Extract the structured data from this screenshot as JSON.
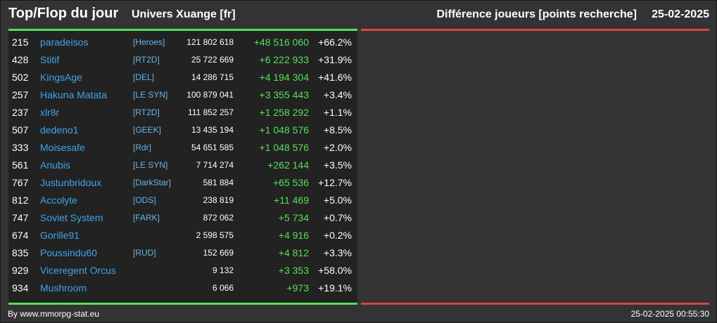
{
  "header": {
    "title": "Top/Flop du jour",
    "universe": "Univers Xuange [fr]",
    "subtitle": "Différence joueurs [points recherche]",
    "date": "25-02-2025"
  },
  "colors": {
    "gain": "#55e055",
    "loss": "#d94545",
    "player_link": "#3fa4e6",
    "alliance_link": "#6ab4ea"
  },
  "top_rows": [
    {
      "rank": "215",
      "name": "paradeisos",
      "alliance": "[Heroes]",
      "points": "121 802 618",
      "diff": "+48 516 060",
      "pct": "+66.2%"
    },
    {
      "rank": "428",
      "name": "Stitif",
      "alliance": "[RT2D]",
      "points": "25 722 669",
      "diff": "+6 222 933",
      "pct": "+31.9%"
    },
    {
      "rank": "502",
      "name": "KingsAge",
      "alliance": "[DEL]",
      "points": "14 286 715",
      "diff": "+4 194 304",
      "pct": "+41.6%"
    },
    {
      "rank": "257",
      "name": "Hakuna Matata",
      "alliance": "[LE SYN]",
      "points": "100 879 041",
      "diff": "+3 355 443",
      "pct": "+3.4%"
    },
    {
      "rank": "237",
      "name": "xlr8r",
      "alliance": "[RT2D]",
      "points": "111 852 257",
      "diff": "+1 258 292",
      "pct": "+1.1%"
    },
    {
      "rank": "507",
      "name": "dedeno1",
      "alliance": "[GEEK]",
      "points": "13 435 194",
      "diff": "+1 048 576",
      "pct": "+8.5%"
    },
    {
      "rank": "333",
      "name": "Moisesafe",
      "alliance": "[Rdr]",
      "points": "54 651 585",
      "diff": "+1 048 576",
      "pct": "+2.0%"
    },
    {
      "rank": "561",
      "name": "Anubis",
      "alliance": "[LE SYN]",
      "points": "7 714 274",
      "diff": "+262 144",
      "pct": "+3.5%"
    },
    {
      "rank": "767",
      "name": "Justunbridoux",
      "alliance": "[DarkStar]",
      "points": "581 884",
      "diff": "+65 536",
      "pct": "+12.7%"
    },
    {
      "rank": "812",
      "name": "Accolyte",
      "alliance": "[ODS]",
      "points": "238 819",
      "diff": "+11 469",
      "pct": "+5.0%"
    },
    {
      "rank": "747",
      "name": "Soviet System",
      "alliance": "[FARK]",
      "points": "872 062",
      "diff": "+5 734",
      "pct": "+0.7%"
    },
    {
      "rank": "674",
      "name": "Gorille91",
      "alliance": "",
      "points": "2 598 575",
      "diff": "+4 916",
      "pct": "+0.2%"
    },
    {
      "rank": "835",
      "name": "Poussindu60",
      "alliance": "[RUD]",
      "points": "152 669",
      "diff": "+4 812",
      "pct": "+3.3%"
    },
    {
      "rank": "929",
      "name": "Viceregent Orcus",
      "alliance": "",
      "points": "9 132",
      "diff": "+3 353",
      "pct": "+58.0%"
    },
    {
      "rank": "934",
      "name": "Mushroom",
      "alliance": "",
      "points": "6 066",
      "diff": "+973",
      "pct": "+19.1%"
    }
  ],
  "footer": {
    "credit": "By www.mmorpg-stat.eu",
    "timestamp": "25-02-2025 00:55:30"
  }
}
